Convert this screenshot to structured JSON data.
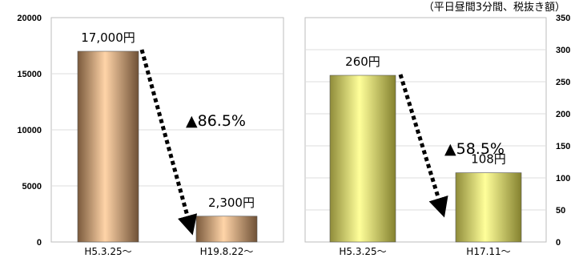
{
  "note": "（平日昼間3分間、税抜き額）",
  "chart_data": [
    {
      "type": "bar",
      "categories": [
        "H5.3.25～",
        "H19.8.22～"
      ],
      "values": [
        17000,
        2300
      ],
      "data_labels": [
        "17,000円",
        "2,300円"
      ],
      "ylim": [
        0,
        20000
      ],
      "yticks": [
        0,
        5000,
        10000,
        15000,
        20000
      ],
      "yaxis_side": "left",
      "grid": true,
      "bar_color": "#d8a377",
      "annotation": "▲86.5%",
      "title": "",
      "xlabel": "",
      "ylabel": ""
    },
    {
      "type": "bar",
      "categories": [
        "H5.3.25～",
        "H17.11～"
      ],
      "values": [
        260,
        108
      ],
      "data_labels": [
        "260円",
        "108円"
      ],
      "ylim": [
        0,
        350
      ],
      "yticks": [
        0,
        50,
        100,
        150,
        200,
        250,
        300,
        350
      ],
      "yaxis_side": "right",
      "grid": true,
      "bar_color": "#e4e47a",
      "annotation": "▲58.5%",
      "title": "",
      "xlabel": "",
      "ylabel": ""
    }
  ]
}
